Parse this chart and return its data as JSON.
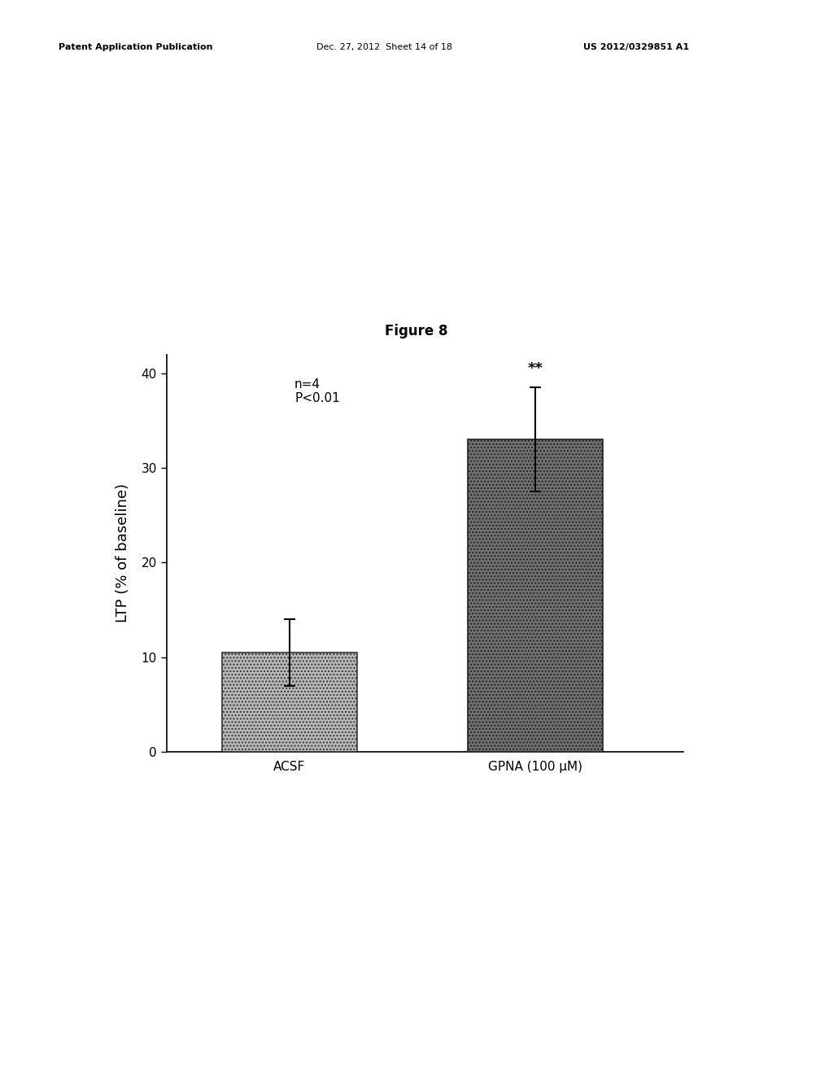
{
  "figure_title": "Figure 8",
  "categories": [
    "ACSF",
    "GPNA (100 μM)"
  ],
  "values": [
    10.5,
    33.0
  ],
  "errors": [
    3.5,
    5.5
  ],
  "bar_colors": [
    "#b8b8b8",
    "#707070"
  ],
  "bar_edge_colors": [
    "#333333",
    "#222222"
  ],
  "ylabel": "LTP (% of baseline)",
  "ylim": [
    0,
    42
  ],
  "yticks": [
    0,
    10,
    20,
    30,
    40
  ],
  "annotation_text": "n=4\nP<0.01",
  "sig_label": "**",
  "background_color": "#ffffff",
  "patent_line1": "Patent Application Publication",
  "patent_line2": "Dec. 27, 2012  Sheet 14 of 18",
  "patent_line3": "US 2012/0329851 A1",
  "title_fontsize": 12,
  "axis_fontsize": 13,
  "tick_fontsize": 11,
  "annotation_fontsize": 11,
  "sig_fontsize": 13,
  "header_fontsize": 8
}
